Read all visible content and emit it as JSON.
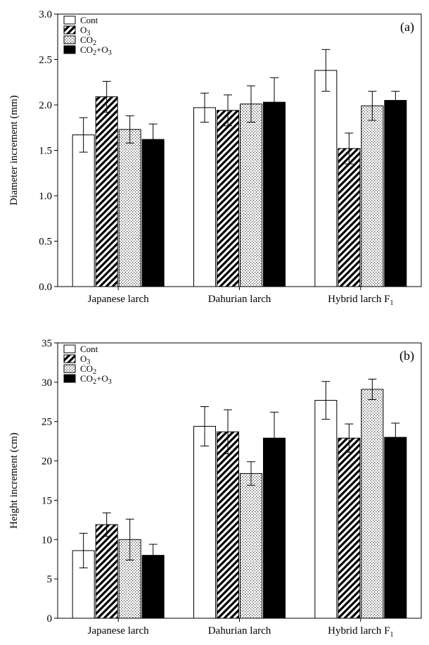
{
  "chart_data": [
    {
      "panel_label": "(a)",
      "type": "bar",
      "ylabel": "Diameter increment (mm)",
      "ylim": [
        0,
        3.0
      ],
      "yticks": [
        "0.0",
        "0.5",
        "1.0",
        "1.5",
        "2.0",
        "2.5",
        "3.0"
      ],
      "categories": [
        {
          "text": "Japanese larch",
          "sub": ""
        },
        {
          "text": "Dahurian larch",
          "sub": ""
        },
        {
          "text": "Hybrid larch F",
          "sub": "1"
        }
      ],
      "legend_position": "top-left",
      "series": [
        {
          "name": "Cont",
          "label_main": "Cont",
          "label_sub": "",
          "label_tail": "",
          "pattern": "open",
          "values": [
            1.67,
            1.97,
            2.38
          ],
          "errors": [
            0.19,
            0.16,
            0.23
          ]
        },
        {
          "name": "O3",
          "label_main": "O",
          "label_sub": "3",
          "label_tail": "",
          "pattern": "hatched",
          "values": [
            2.09,
            1.94,
            1.52
          ],
          "errors": [
            0.17,
            0.17,
            0.17
          ]
        },
        {
          "name": "CO2",
          "label_main": "CO",
          "label_sub": "2",
          "label_tail": "",
          "pattern": "dotted",
          "values": [
            1.73,
            2.01,
            1.99
          ],
          "errors": [
            0.15,
            0.2,
            0.16
          ]
        },
        {
          "name": "CO2+O3",
          "label_main": "CO",
          "label_sub": "2",
          "label_tail": "+O",
          "label_sub2": "3",
          "pattern": "solid",
          "values": [
            1.62,
            2.03,
            2.05
          ],
          "errors": [
            0.17,
            0.27,
            0.1
          ]
        }
      ]
    },
    {
      "panel_label": "(b)",
      "type": "bar",
      "ylabel": "Height increment (cm)",
      "ylim": [
        0,
        35
      ],
      "yticks": [
        "0",
        "5",
        "10",
        "15",
        "20",
        "25",
        "30",
        "35"
      ],
      "categories": [
        {
          "text": "Japanese larch",
          "sub": ""
        },
        {
          "text": "Dahurian larch",
          "sub": ""
        },
        {
          "text": "Hybrid larch F",
          "sub": "1"
        }
      ],
      "legend_position": "top-left",
      "series": [
        {
          "name": "Cont",
          "label_main": "Cont",
          "label_sub": "",
          "label_tail": "",
          "pattern": "open",
          "values": [
            8.6,
            24.4,
            27.7
          ],
          "errors": [
            2.2,
            2.5,
            2.4
          ]
        },
        {
          "name": "O3",
          "label_main": "O",
          "label_sub": "3",
          "label_tail": "",
          "pattern": "hatched",
          "values": [
            11.9,
            23.7,
            22.9
          ],
          "errors": [
            1.5,
            2.8,
            1.8
          ]
        },
        {
          "name": "CO2",
          "label_main": "CO",
          "label_sub": "2",
          "label_tail": "",
          "pattern": "dotted",
          "values": [
            10.0,
            18.4,
            29.1
          ],
          "errors": [
            2.6,
            1.5,
            1.3
          ]
        },
        {
          "name": "CO2+O3",
          "label_main": "CO",
          "label_sub": "2",
          "label_tail": "+O",
          "label_sub2": "3",
          "pattern": "solid",
          "values": [
            8.0,
            22.9,
            23.0
          ],
          "errors": [
            1.4,
            3.3,
            1.8
          ]
        }
      ]
    }
  ]
}
